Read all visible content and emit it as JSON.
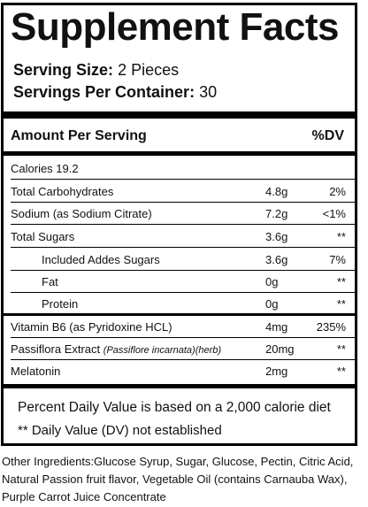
{
  "title": "Supplement Facts",
  "serving_size": {
    "label": "Serving Size:",
    "value": "2 Pieces"
  },
  "servings_per_container": {
    "label": "Servings Per Container:",
    "value": "30"
  },
  "header": {
    "amount": "Amount Per Serving",
    "dv": "%DV"
  },
  "calories": "Calories 19.2",
  "rows": [
    {
      "label": "Total Carbohydrates",
      "amount": "4.8g",
      "dv": "2%"
    },
    {
      "label": "Sodium (as Sodium Citrate)",
      "amount": "7.2g",
      "dv": "<1%"
    },
    {
      "label": "Total Sugars",
      "amount": "3.6g",
      "dv": "**"
    },
    {
      "label": "Included Addes Sugars",
      "amount": "3.6g",
      "dv": "7%"
    },
    {
      "label": "Fat",
      "amount": "0g",
      "dv": "**"
    },
    {
      "label": "Protein",
      "amount": "0g",
      "dv": "**"
    },
    {
      "label": "Vitamin B6 (as Pyridoxine HCL)",
      "amount": "4mg",
      "dv": "235%"
    },
    {
      "label": "Passiflora Extract",
      "label_italic": "(Passiflore incarnata)(herb)",
      "amount": "20mg",
      "dv": "**"
    },
    {
      "label": "Melatonin",
      "amount": "2mg",
      "dv": "**"
    }
  ],
  "footnotes": {
    "percent": "Percent Daily Value is based on a 2,000 calorie diet",
    "dv_not_established": "** Daily Value (DV) not established"
  },
  "other_ingredients": "Other Ingredients:Glucose Syrup,  Sugar, Glucose, Pectin, Citric Acid, Natural Passion fruit flavor, Vegetable Oil (contains Carnauba Wax), Purple Carrot Juice Concentrate"
}
